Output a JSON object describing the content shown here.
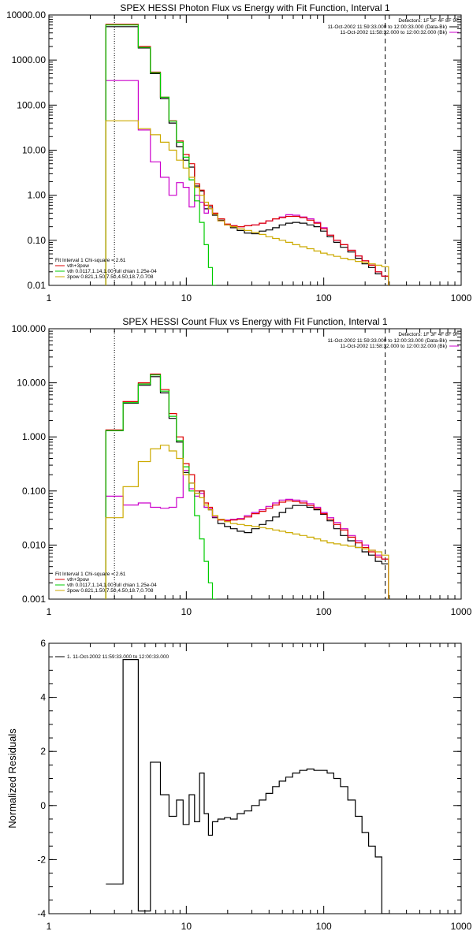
{
  "chart_data": [
    {
      "type": "line",
      "title": "SPEX HESSI Photon Flux vs Energy with Fit Function, Interval 1",
      "xlabel": "",
      "ylabel": "",
      "xscale": "log",
      "yscale": "log",
      "xlim": [
        1,
        1000
      ],
      "ylim": [
        0.01,
        10000
      ],
      "x_ticks": [
        "1",
        "10",
        "100",
        "1000"
      ],
      "y_ticks": [
        "0.01",
        "0.10",
        "1.00",
        "10.00",
        "100.00",
        "1000.00",
        "10000.00"
      ],
      "vlines": [
        {
          "x": 3,
          "style": "dotted"
        },
        {
          "x": 280,
          "style": "dashed"
        }
      ],
      "legend_top_right": {
        "detectors": "Detectors: 1F 3F 4F 8F 9F",
        "entries": [
          {
            "label": "11-Oct-2002 11:59:33.000 to 12:00:33.000 (Data-Bk)",
            "color": "#000000"
          },
          {
            "label": "11-Oct-2002 11:58:32.000 to 12:00:32.000 (Bk)",
            "color": "#cc00cc"
          }
        ]
      },
      "legend_bottom_left": {
        "header": "Fit Interval 1    Chi-square = 2.61",
        "entries": [
          {
            "label": "vth+3pow",
            "color": "#dd0000"
          },
          {
            "label": "vth 0.0117,1.14,1.00  full chian 1.25e-04",
            "color": "#00cc00"
          },
          {
            "label": "3pow 0.821,1.50,7.50,4.50,18.7,0.708",
            "color": "#ccaa00"
          }
        ]
      },
      "series": [
        {
          "color": "#000000",
          "x": [
            3,
            4,
            5,
            6,
            7,
            8,
            9,
            10,
            11,
            12,
            13,
            14,
            15,
            16,
            18,
            20,
            22,
            25,
            28,
            32,
            36,
            40,
            45,
            50,
            56,
            63,
            71,
            80,
            90,
            100,
            112,
            125,
            140,
            160,
            180,
            200,
            225,
            250,
            280
          ],
          "y": [
            5500,
            5500,
            1850,
            500,
            140,
            40,
            12,
            6.0,
            4.2,
            1.6,
            1.25,
            0.5,
            0.55,
            0.36,
            0.28,
            0.22,
            0.19,
            0.165,
            0.145,
            0.14,
            0.16,
            0.17,
            0.19,
            0.22,
            0.24,
            0.25,
            0.24,
            0.22,
            0.2,
            0.16,
            0.12,
            0.09,
            0.07,
            0.055,
            0.04,
            0.03,
            0.025,
            0.018,
            0.016
          ]
        },
        {
          "color": "#cc00cc",
          "x": [
            3,
            4,
            5,
            6,
            7,
            8,
            9,
            10,
            11,
            12,
            13,
            14,
            15,
            16,
            18,
            20,
            22,
            25,
            28,
            32,
            36,
            40,
            45,
            50,
            56,
            63,
            71,
            80,
            90,
            100,
            112,
            125,
            140,
            160,
            180,
            200,
            225,
            250,
            280
          ],
          "y": [
            350,
            350,
            28,
            5.5,
            2.5,
            1.0,
            1.9,
            1.5,
            0.55,
            1.0,
            0.7,
            0.4,
            0.5,
            0.38,
            0.27,
            0.22,
            0.21,
            0.2,
            0.21,
            0.22,
            0.24,
            0.27,
            0.3,
            0.33,
            0.37,
            0.36,
            0.33,
            0.3,
            0.25,
            0.19,
            0.13,
            0.1,
            0.08,
            0.06,
            0.045,
            0.035,
            0.028,
            0.02,
            0.016
          ]
        },
        {
          "color": "#dd0000",
          "x": [
            3,
            4,
            5,
            6,
            7,
            8,
            9,
            10,
            11,
            12,
            13,
            14,
            15,
            16,
            18,
            20,
            22,
            25,
            28,
            32,
            36,
            40,
            45,
            50,
            56,
            63,
            71,
            80,
            90,
            100,
            112,
            125,
            140,
            160,
            180,
            200,
            225,
            250,
            280
          ],
          "y": [
            6200,
            6200,
            2000,
            540,
            150,
            45,
            16,
            8.0,
            5.0,
            1.8,
            1.3,
            0.6,
            0.6,
            0.4,
            0.3,
            0.23,
            0.21,
            0.2,
            0.21,
            0.22,
            0.24,
            0.27,
            0.3,
            0.32,
            0.34,
            0.34,
            0.32,
            0.28,
            0.24,
            0.18,
            0.13,
            0.1,
            0.08,
            0.06,
            0.045,
            0.035,
            0.028,
            0.02,
            0.016
          ]
        },
        {
          "color": "#00cc00",
          "x": [
            3,
            4,
            5,
            6,
            7,
            8,
            9,
            10,
            11,
            12,
            13,
            14,
            15,
            16
          ],
          "y": [
            6000,
            6000,
            1900,
            520,
            150,
            44,
            15,
            7.0,
            2.2,
            0.75,
            0.25,
            0.08,
            0.025,
            0.01
          ]
        },
        {
          "color": "#ccaa00",
          "x": [
            3,
            4,
            5,
            6,
            7,
            8,
            9,
            10,
            11,
            12,
            13,
            14,
            15,
            16,
            18,
            20,
            22,
            25,
            28,
            32,
            36,
            40,
            45,
            50,
            56,
            63,
            71,
            80,
            90,
            100,
            112,
            125,
            140,
            160,
            180,
            200,
            225,
            250,
            280
          ],
          "y": [
            45,
            45,
            30,
            22,
            15,
            10,
            6.0,
            4.0,
            2.5,
            1.5,
            1.0,
            0.7,
            0.5,
            0.38,
            0.27,
            0.22,
            0.2,
            0.18,
            0.165,
            0.15,
            0.135,
            0.12,
            0.11,
            0.1,
            0.09,
            0.08,
            0.072,
            0.065,
            0.058,
            0.052,
            0.048,
            0.044,
            0.04,
            0.037,
            0.034,
            0.032,
            0.03,
            0.028,
            0.026
          ]
        }
      ]
    },
    {
      "type": "line",
      "title": "SPEX HESSI Count Flux vs Energy with Fit Function, Interval 1",
      "xlabel": "",
      "ylabel": "",
      "xscale": "log",
      "yscale": "log",
      "xlim": [
        1,
        1000
      ],
      "ylim": [
        0.001,
        100
      ],
      "x_ticks": [
        "1",
        "10",
        "100",
        "1000"
      ],
      "y_ticks": [
        "0.001",
        "0.010",
        "0.100",
        "1.000",
        "10.000",
        "100.000"
      ],
      "vlines": [
        {
          "x": 3,
          "style": "dotted"
        },
        {
          "x": 280,
          "style": "dashed"
        }
      ],
      "legend_top_right": {
        "detectors": "Detectors: 1F 3F 4F 8F 9F",
        "entries": [
          {
            "label": "11-Oct-2002 11:59:33.000 to 12:00:33.000 (Data-Bk)",
            "color": "#000000"
          },
          {
            "label": "11-Oct-2002 11:58:32.000 to 12:00:32.000 (Bk)",
            "color": "#cc00cc"
          }
        ]
      },
      "legend_bottom_left": {
        "header": "Fit Interval 1    Chi-square = 2.61",
        "entries": [
          {
            "label": "vth+3pow",
            "color": "#dd0000"
          },
          {
            "label": "vth 0.0117,1.14,1.00  full chian 1.25e-04",
            "color": "#00cc00"
          },
          {
            "label": "3pow 0.821,1.50,7.50,4.50,18.7,0.708",
            "color": "#ccaa00"
          }
        ]
      },
      "series": [
        {
          "color": "#000000",
          "x": [
            3,
            4,
            5,
            6,
            7,
            8,
            9,
            10,
            11,
            12,
            13,
            14,
            15,
            16,
            18,
            20,
            22,
            25,
            28,
            32,
            36,
            40,
            45,
            50,
            56,
            63,
            71,
            80,
            90,
            100,
            112,
            125,
            140,
            160,
            180,
            200,
            225,
            250,
            280
          ],
          "y": [
            1.3,
            4.2,
            9,
            13,
            6.5,
            2.2,
            0.8,
            0.22,
            0.14,
            0.09,
            0.1,
            0.05,
            0.045,
            0.032,
            0.025,
            0.022,
            0.02,
            0.018,
            0.017,
            0.02,
            0.024,
            0.028,
            0.033,
            0.04,
            0.048,
            0.054,
            0.054,
            0.05,
            0.045,
            0.037,
            0.028,
            0.02,
            0.015,
            0.012,
            0.009,
            0.0075,
            0.0065,
            0.005,
            0.0045
          ]
        },
        {
          "color": "#cc00cc",
          "x": [
            3,
            4,
            5,
            6,
            7,
            8,
            9,
            10,
            11,
            12,
            13,
            14,
            15,
            16,
            18,
            20,
            22,
            25,
            28,
            32,
            36,
            40,
            45,
            50,
            56,
            63,
            71,
            80,
            90,
            100,
            112,
            125,
            140,
            160,
            180,
            200,
            225,
            250,
            280
          ],
          "y": [
            0.08,
            0.055,
            0.06,
            0.05,
            0.048,
            0.05,
            0.075,
            0.24,
            0.11,
            0.08,
            0.09,
            0.05,
            0.047,
            0.033,
            0.03,
            0.029,
            0.03,
            0.031,
            0.035,
            0.04,
            0.045,
            0.052,
            0.06,
            0.068,
            0.07,
            0.068,
            0.065,
            0.058,
            0.05,
            0.04,
            0.032,
            0.026,
            0.02,
            0.015,
            0.012,
            0.01,
            0.008,
            0.0065,
            0.0055
          ]
        },
        {
          "color": "#dd0000",
          "x": [
            3,
            4,
            5,
            6,
            7,
            8,
            9,
            10,
            11,
            12,
            13,
            14,
            15,
            16,
            18,
            20,
            22,
            25,
            28,
            32,
            36,
            40,
            45,
            50,
            56,
            63,
            71,
            80,
            90,
            100,
            112,
            125,
            140,
            160,
            180,
            200,
            225,
            250,
            280
          ],
          "y": [
            1.35,
            4.5,
            10,
            14.5,
            7.5,
            2.7,
            1.0,
            0.32,
            0.2,
            0.1,
            0.1,
            0.06,
            0.05,
            0.035,
            0.029,
            0.028,
            0.029,
            0.03,
            0.033,
            0.038,
            0.042,
            0.048,
            0.055,
            0.062,
            0.066,
            0.064,
            0.06,
            0.054,
            0.047,
            0.038,
            0.03,
            0.024,
            0.019,
            0.014,
            0.011,
            0.009,
            0.0075,
            0.006,
            0.0055
          ]
        },
        {
          "color": "#00cc00",
          "x": [
            3,
            4,
            5,
            6,
            7,
            8,
            9,
            10,
            11,
            12,
            13,
            14,
            15,
            16
          ],
          "y": [
            1.3,
            4.3,
            9.5,
            14,
            7,
            2.4,
            0.85,
            0.28,
            0.1,
            0.035,
            0.013,
            0.005,
            0.002,
            0.001
          ]
        },
        {
          "color": "#ccaa00",
          "x": [
            3,
            4,
            5,
            6,
            7,
            8,
            9,
            10,
            11,
            12,
            13,
            14,
            15,
            16,
            18,
            20,
            22,
            25,
            28,
            32,
            36,
            40,
            45,
            50,
            56,
            63,
            71,
            80,
            90,
            100,
            112,
            125,
            140,
            160,
            180,
            200,
            225,
            250,
            280
          ],
          "y": [
            0.032,
            0.12,
            0.35,
            0.6,
            0.7,
            0.55,
            0.4,
            0.2,
            0.14,
            0.09,
            0.075,
            0.055,
            0.045,
            0.035,
            0.03,
            0.027,
            0.025,
            0.024,
            0.023,
            0.022,
            0.021,
            0.02,
            0.019,
            0.018,
            0.017,
            0.016,
            0.015,
            0.014,
            0.013,
            0.012,
            0.011,
            0.0105,
            0.01,
            0.0095,
            0.009,
            0.0085,
            0.008,
            0.0075,
            0.0065
          ]
        }
      ]
    },
    {
      "type": "line",
      "title": "",
      "xlabel": "",
      "ylabel": "Normalized Residuals",
      "xscale": "log",
      "yscale": "linear",
      "xlim": [
        1,
        1000
      ],
      "ylim": [
        -4,
        6
      ],
      "x_ticks": [
        "1",
        "10",
        "100",
        "1000"
      ],
      "y_ticks": [
        "-4",
        "-2",
        "0",
        "2",
        "4",
        "6"
      ],
      "legend": [
        {
          "label": "1. 11-Oct-2002 11:59:33.000 to 12:00:33.000",
          "color": "#000000"
        }
      ],
      "series": [
        {
          "color": "#000000",
          "x": [
            3,
            4,
            5,
            6,
            7,
            8,
            9,
            10,
            11,
            12,
            13,
            14,
            15,
            16,
            18,
            20,
            22,
            25,
            28,
            32,
            36,
            40,
            45,
            50,
            56,
            63,
            71,
            80,
            90,
            100,
            112,
            125,
            140,
            160,
            180,
            200,
            225,
            250,
            280
          ],
          "y": [
            -2.9,
            5.4,
            -3.9,
            1.6,
            0.4,
            -0.4,
            0.2,
            -0.7,
            0.4,
            -0.6,
            1.2,
            -0.3,
            -1.1,
            -0.6,
            -0.5,
            -0.45,
            -0.5,
            -0.3,
            -0.2,
            0.0,
            0.2,
            0.45,
            0.7,
            0.9,
            1.05,
            1.2,
            1.3,
            1.35,
            1.3,
            1.3,
            1.2,
            1.0,
            0.7,
            0.2,
            -0.4,
            -1.0,
            -1.5,
            -1.9,
            -4.0
          ]
        }
      ]
    }
  ]
}
